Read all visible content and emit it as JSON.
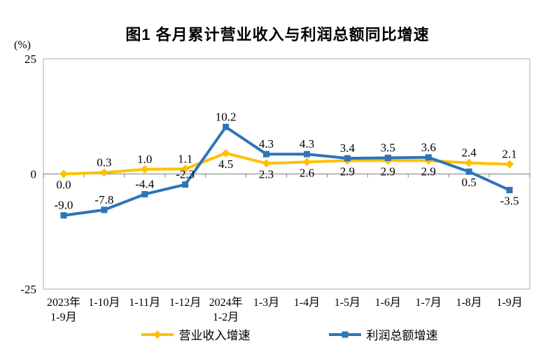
{
  "chart": {
    "title": "图1  各月累计营业收入与利润总额同比增速",
    "unit": "(%)"
  },
  "chart_data": {
    "type": "line",
    "title": "图1  各月累计营业收入与利润总额同比增速",
    "ylabel": "(%)",
    "categories": [
      [
        "2023年",
        "1-9月"
      ],
      [
        "1-10月"
      ],
      [
        "1-11月"
      ],
      [
        "1-12月"
      ],
      [
        "2024年",
        "1-2月"
      ],
      [
        "1-3月"
      ],
      [
        "1-4月"
      ],
      [
        "1-5月"
      ],
      [
        "1-6月"
      ],
      [
        "1-7月"
      ],
      [
        "1-8月"
      ],
      [
        "1-9月"
      ]
    ],
    "series": [
      {
        "name": "营业收入增速",
        "color": "#FFC000",
        "marker": "diamond",
        "values": [
          0.0,
          0.3,
          1.0,
          1.1,
          4.5,
          2.3,
          2.6,
          2.9,
          2.9,
          2.9,
          2.4,
          2.1
        ],
        "label_side": [
          "below",
          "above",
          "above",
          "above",
          "below",
          "below",
          "below",
          "below",
          "below",
          "below",
          "above",
          "above"
        ]
      },
      {
        "name": "利润总额增速",
        "color": "#2E74B9",
        "marker": "square",
        "values": [
          -9.0,
          -7.8,
          -4.4,
          -2.3,
          10.2,
          4.3,
          4.3,
          3.4,
          3.5,
          3.6,
          0.5,
          -3.5
        ],
        "label_side": [
          "above",
          "above",
          "above",
          "above",
          "above",
          "above",
          "above",
          "above",
          "above",
          "above",
          "below",
          "below"
        ]
      }
    ],
    "y_axis": {
      "min": -25,
      "max": 25,
      "ticks": [
        25,
        0,
        -25
      ]
    },
    "grid": false,
    "legend_position": "bottom",
    "colors": {
      "plot_border": "#C9C9C9",
      "zero_axis": "#808080",
      "text": "#000000"
    }
  }
}
